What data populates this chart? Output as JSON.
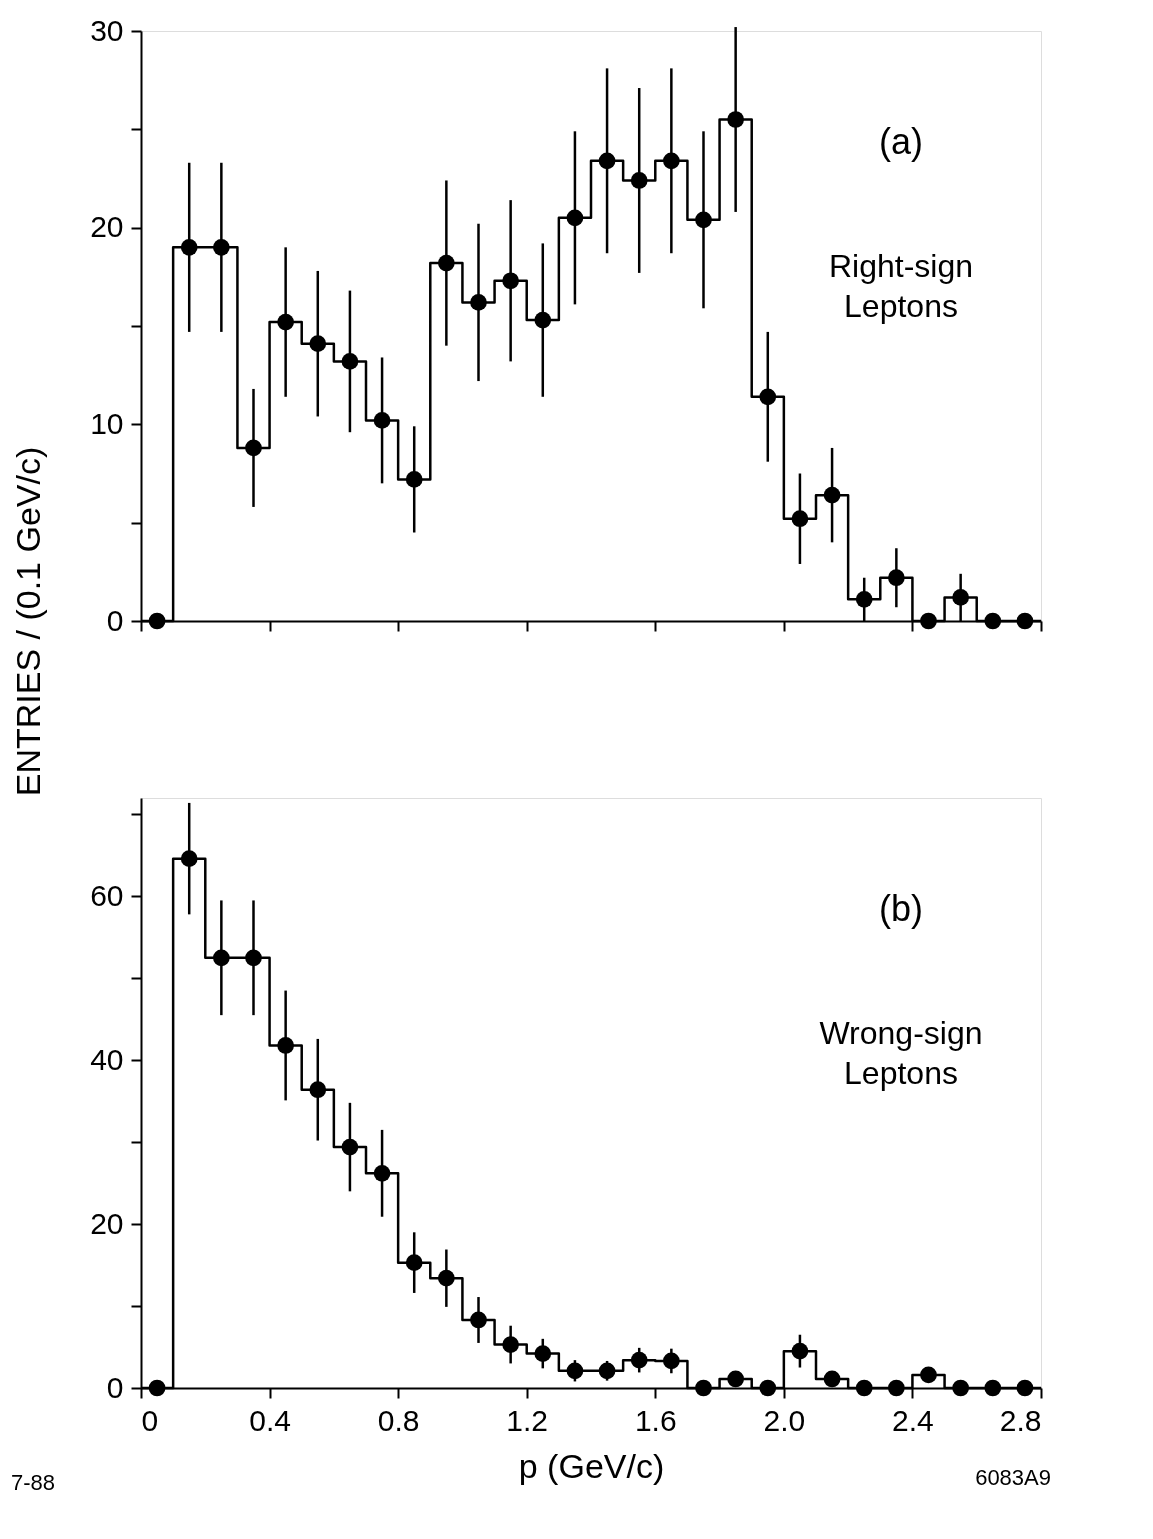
{
  "chart_data": [
    {
      "type": "histogram",
      "ylabel": "ENTRIES / (0.1 GeV/c)",
      "color": "#000000",
      "bins": [
        0,
        0.1,
        0.2,
        0.3,
        0.4,
        0.5,
        0.6,
        0.7,
        0.8,
        0.9,
        1.0,
        1.1,
        1.2,
        1.3,
        1.4,
        1.5,
        1.6,
        1.7,
        1.8,
        1.9,
        2.0,
        2.1,
        2.2,
        2.3,
        2.4,
        2.5,
        2.6,
        2.7,
        2.8
      ],
      "values": [
        0,
        19,
        19,
        8.8,
        15.2,
        14.1,
        13.2,
        10.2,
        7.2,
        18.2,
        16.2,
        17.3,
        15.3,
        20.5,
        23.4,
        22.4,
        23.4,
        20.4,
        25.5,
        11.4,
        5.2,
        6.4,
        1.1,
        2.2,
        0,
        1.2,
        0,
        0
      ],
      "series": [
        {
          "type": "scatter",
          "color": "#000000",
          "marker": "circle",
          "x": [
            0.05,
            0.15,
            0.25,
            0.35,
            0.45,
            0.55,
            0.65,
            0.75,
            0.85,
            0.95,
            1.05,
            1.15,
            1.25,
            1.35,
            1.45,
            1.55,
            1.65,
            1.75,
            1.85,
            1.95,
            2.05,
            2.15,
            2.25,
            2.35,
            2.45,
            2.55,
            2.65,
            2.75
          ],
          "values": [
            0,
            19,
            19,
            8.8,
            15.2,
            14.1,
            13.2,
            10.2,
            7.2,
            18.2,
            16.2,
            17.3,
            15.3,
            20.5,
            23.4,
            22.4,
            23.4,
            20.4,
            25.5,
            11.4,
            5.2,
            6.4,
            1.1,
            2.2,
            0,
            1.2,
            0,
            0
          ],
          "errors": [
            null,
            4.3,
            4.3,
            3,
            3.8,
            3.7,
            3.6,
            3.2,
            2.7,
            4.2,
            4,
            4.1,
            3.9,
            4.4,
            4.7,
            4.7,
            4.7,
            4.5,
            4.7,
            3.3,
            2.3,
            2.4,
            1.1,
            1.5,
            null,
            1.2,
            null,
            null
          ]
        }
      ],
      "xlim": [
        0,
        2.8
      ],
      "xticks": [
        0,
        0.4,
        0.8,
        1.2,
        1.6,
        2.0,
        2.4,
        2.8
      ],
      "ylim": [
        0,
        30
      ],
      "yticks": [
        0,
        {
          "value": 5,
          "label": null
        },
        10,
        {
          "value": 15,
          "label": null
        },
        20,
        {
          "value": 25,
          "label": null
        },
        30
      ],
      "tick_labels": "y",
      "annotations": [
        "(a)",
        "Right-sign Leptons"
      ]
    },
    {
      "type": "histogram",
      "xlabel": "p    (GeV/c)",
      "color": "#000000",
      "bins": [
        0,
        0.1,
        0.2,
        0.3,
        0.4,
        0.5,
        0.6,
        0.7,
        0.8,
        0.9,
        1.0,
        1.1,
        1.2,
        1.3,
        1.4,
        1.5,
        1.6,
        1.7,
        1.8,
        1.9,
        2.0,
        2.1,
        2.2,
        2.3,
        2.4,
        2.5,
        2.6,
        2.7,
        2.8
      ],
      "values": [
        0,
        64.6,
        52.5,
        52.5,
        41.8,
        36.4,
        29.4,
        26.2,
        15.3,
        13.4,
        8.3,
        5.3,
        4.2,
        2.1,
        2.1,
        3.4,
        3.3,
        0,
        1.1,
        0,
        4.5,
        1.1,
        0,
        0,
        1.6,
        0,
        0,
        0
      ],
      "series": [
        {
          "type": "scatter",
          "color": "#000000",
          "marker": "circle",
          "x": [
            0.05,
            0.15,
            0.25,
            0.35,
            0.45,
            0.55,
            0.65,
            0.75,
            0.85,
            0.95,
            1.05,
            1.15,
            1.25,
            1.35,
            1.45,
            1.55,
            1.65,
            1.75,
            1.85,
            1.95,
            2.05,
            2.15,
            2.25,
            2.35,
            2.45,
            2.55,
            2.65,
            2.75
          ],
          "values": [
            0,
            64.6,
            52.5,
            52.5,
            41.8,
            36.4,
            29.4,
            26.2,
            15.3,
            13.4,
            8.3,
            5.3,
            4.2,
            2.1,
            2.1,
            3.4,
            3.3,
            0,
            1.1,
            0,
            4.5,
            1.1,
            0,
            0,
            1.6,
            0,
            0,
            0
          ],
          "errors": [
            null,
            6.8,
            7,
            7,
            6.7,
            6.2,
            5.4,
            5.3,
            3.7,
            3.5,
            2.8,
            2.3,
            1.8,
            1.3,
            1.2,
            1.5,
            1.5,
            null,
            null,
            null,
            2,
            null,
            null,
            null,
            null,
            null,
            null,
            null
          ]
        }
      ],
      "xlim": [
        0,
        2.8
      ],
      "xticks": [
        0,
        0.4,
        0.8,
        1.2,
        1.6,
        {
          "value": 2.0,
          "label": "2.0"
        },
        2.4,
        2.8
      ],
      "ylim": [
        0,
        72
      ],
      "yticks": [
        0,
        {
          "value": 10,
          "label": null
        },
        20,
        {
          "value": 30,
          "label": null
        },
        40,
        {
          "value": 50,
          "label": null
        },
        60,
        {
          "value": 70,
          "label": null
        }
      ],
      "annotations": [
        "(b)",
        "Wrong-sign Leptons",
        "7-88",
        "6083A9"
      ]
    }
  ]
}
